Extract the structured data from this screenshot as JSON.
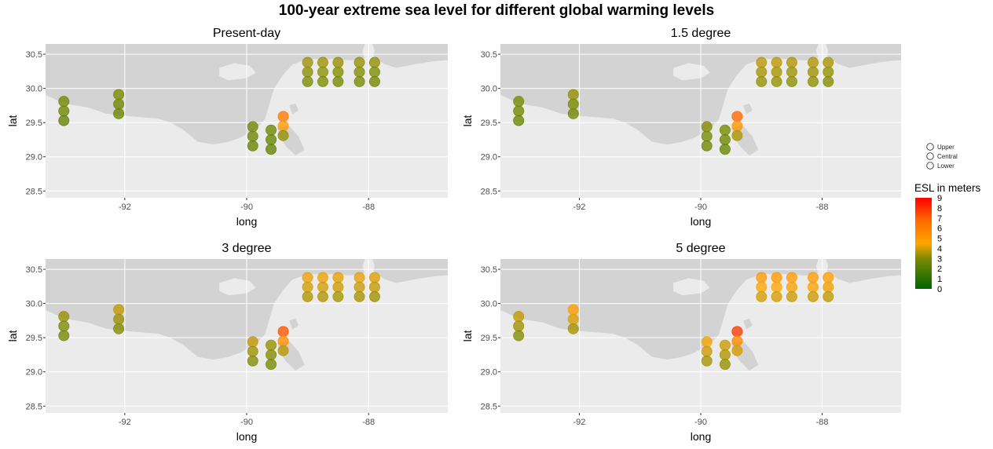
{
  "page_title": "100-year extreme sea level for different global warming levels",
  "chart_data": {
    "type": "scatter",
    "xlabel": "long",
    "ylabel": "lat",
    "xlim": [
      -93.3,
      -86.7
    ],
    "ylim": [
      28.4,
      30.65
    ],
    "x_ticks": [
      -92,
      -90,
      -88
    ],
    "y_ticks": [
      28.5,
      29.0,
      29.5,
      30.0,
      30.5
    ],
    "x_tick_labels": [
      "-92",
      "-90",
      "-88"
    ],
    "y_tick_labels": [
      "28.5",
      "29.0",
      "29.5",
      "30.0",
      "30.5"
    ],
    "grid": true,
    "colors": {
      "panel_bg": "#ebebeb",
      "land": "#d3d3d3",
      "grid": "#ffffff",
      "scale_low": "#006400",
      "scale_mid": "#ffa500",
      "scale_high": "#ff0000"
    },
    "size_legend": {
      "position": "right",
      "entries": [
        "Upper",
        "Central",
        "Lower"
      ]
    },
    "color_legend": {
      "title": "ESL in meters",
      "position": "right",
      "min": 0,
      "max": 9,
      "tick_values": [
        9,
        8,
        7,
        6,
        5,
        4,
        3,
        2,
        1,
        0
      ],
      "tick_labels": [
        "9",
        "8",
        "7",
        "6",
        "5",
        "4",
        "3",
        "2",
        "1",
        "0"
      ]
    },
    "stations": [
      {
        "long": -93.0,
        "lat": [
          29.81,
          29.67,
          29.53
        ]
      },
      {
        "long": -92.1,
        "lat": [
          29.91,
          29.77,
          29.63
        ]
      },
      {
        "long": -89.9,
        "lat": [
          29.44,
          29.3,
          29.16
        ]
      },
      {
        "long": -89.6,
        "lat": [
          29.39,
          29.25,
          29.11
        ]
      },
      {
        "long": -89.4,
        "lat": [
          29.59,
          29.45,
          29.31
        ]
      },
      {
        "long": -89.0,
        "lat": [
          30.38,
          30.24,
          30.1
        ]
      },
      {
        "long": -88.75,
        "lat": [
          30.38,
          30.24,
          30.1
        ]
      },
      {
        "long": -88.5,
        "lat": [
          30.38,
          30.24,
          30.1
        ]
      },
      {
        "long": -88.15,
        "lat": [
          30.38,
          30.24,
          30.1
        ]
      },
      {
        "long": -87.9,
        "lat": [
          30.38,
          30.24,
          30.1
        ]
      }
    ],
    "panels": [
      {
        "title": "Present-day",
        "esl": [
          [
            2.8,
            2.6,
            2.4
          ],
          [
            3.0,
            2.8,
            2.6
          ],
          [
            2.9,
            2.7,
            2.5
          ],
          [
            2.7,
            2.5,
            2.4
          ],
          [
            6.2,
            5.0,
            3.3
          ],
          [
            3.4,
            3.2,
            3.0
          ],
          [
            3.4,
            3.2,
            3.0
          ],
          [
            3.3,
            3.1,
            2.9
          ],
          [
            3.3,
            3.1,
            2.9
          ],
          [
            3.2,
            3.0,
            2.8
          ]
        ]
      },
      {
        "title": "1.5 degree",
        "esl": [
          [
            2.9,
            2.7,
            2.5
          ],
          [
            3.3,
            3.0,
            2.8
          ],
          [
            3.1,
            2.9,
            2.7
          ],
          [
            2.9,
            2.7,
            2.5
          ],
          [
            6.8,
            5.2,
            3.6
          ],
          [
            3.7,
            3.5,
            3.3
          ],
          [
            3.7,
            3.5,
            3.3
          ],
          [
            3.6,
            3.4,
            3.2
          ],
          [
            3.6,
            3.4,
            3.2
          ],
          [
            3.5,
            3.3,
            3.1
          ]
        ]
      },
      {
        "title": "3 degree",
        "esl": [
          [
            3.3,
            3.0,
            2.8
          ],
          [
            3.8,
            3.4,
            3.1
          ],
          [
            3.8,
            3.4,
            3.1
          ],
          [
            3.3,
            3.1,
            2.9
          ],
          [
            7.2,
            5.3,
            3.7
          ],
          [
            4.3,
            4.0,
            3.6
          ],
          [
            4.3,
            4.0,
            3.6
          ],
          [
            4.2,
            3.9,
            3.5
          ],
          [
            4.2,
            3.9,
            3.5
          ],
          [
            4.1,
            3.8,
            3.4
          ]
        ]
      },
      {
        "title": "5 degree",
        "esl": [
          [
            3.8,
            3.4,
            3.1
          ],
          [
            4.8,
            4.1,
            3.5
          ],
          [
            4.4,
            3.9,
            3.5
          ],
          [
            3.9,
            3.6,
            3.3
          ],
          [
            7.8,
            5.6,
            4.0
          ],
          [
            5.0,
            4.5,
            4.0
          ],
          [
            5.0,
            4.5,
            4.0
          ],
          [
            4.9,
            4.4,
            3.9
          ],
          [
            4.9,
            4.4,
            3.9
          ],
          [
            4.8,
            4.3,
            3.8
          ]
        ]
      }
    ]
  }
}
